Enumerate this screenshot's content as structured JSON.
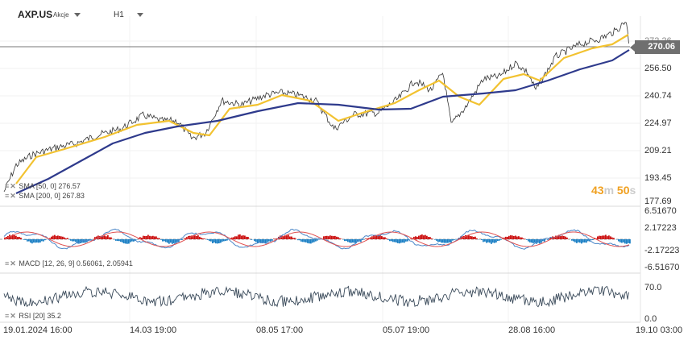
{
  "header": {
    "symbol": "AXP.US",
    "instrument_type": "Akcje",
    "timeframe": "H1"
  },
  "price_panel": {
    "current_price": "270.06",
    "y_ticks": [
      "272.26",
      "256.50",
      "240.74",
      "224.97",
      "209.21",
      "193.45",
      "177.69"
    ],
    "legend": [
      {
        "label": "SMA [50, 0] 276.57",
        "color": "#f2c230"
      },
      {
        "label": "SMA [200, 0] 267.83",
        "color": "#2e3a8c"
      }
    ],
    "timer": {
      "minutes": "43",
      "m_unit": "m",
      "seconds": "50",
      "s_unit": "s"
    }
  },
  "macd_panel": {
    "y_ticks": [
      "6.51670",
      "2.17223",
      "-2.17223",
      "-6.51670"
    ],
    "legend": "MACD [12, 26, 9] 0.56061, 2.05941"
  },
  "rsi_panel": {
    "y_ticks": [
      "70.0",
      "0.0"
    ],
    "legend": "RSI [20] 35.2"
  },
  "x_axis": {
    "labels": [
      "19.01.2024 16:00",
      "14.03 19:00",
      "08.05 17:00",
      "05.07 19:00",
      "28.08 16:00",
      "19.10 03:00"
    ]
  },
  "colors": {
    "price_line": "#333333",
    "sma50": "#f2c230",
    "sma200": "#2e3a8c",
    "macd_line": "#4a86c8",
    "signal_line": "#e05050",
    "hist_pos": "#cc1111",
    "hist_neg": "#1a7fc4",
    "rsi": "#3a4a5a"
  }
}
